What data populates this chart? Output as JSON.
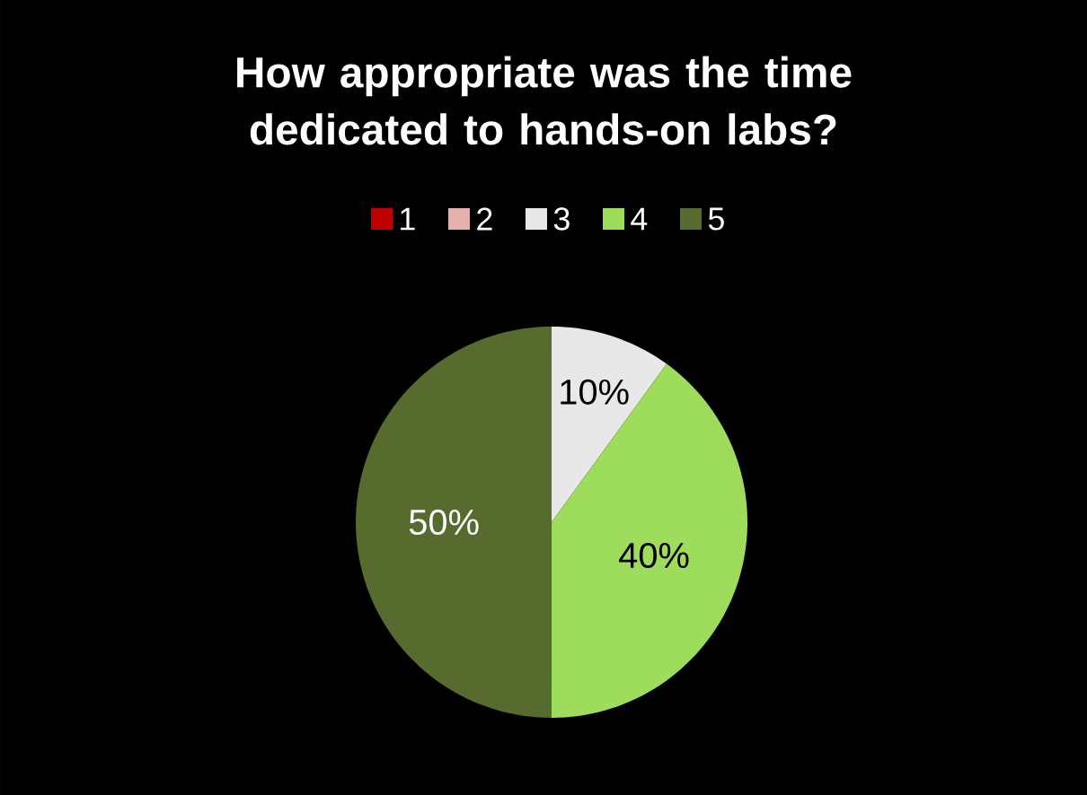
{
  "chart_data": {
    "type": "pie",
    "title": "How appropriate was the time dedicated to hands-on labs?",
    "categories": [
      "1",
      "2",
      "3",
      "4",
      "5"
    ],
    "values": [
      0,
      0,
      10,
      40,
      50
    ],
    "colors": [
      "#c00000",
      "#e6b0ae",
      "#e8e8e8",
      "#9edc5c",
      "#566b2d"
    ],
    "value_labels": [
      null,
      null,
      "10%",
      "40%",
      "50%"
    ],
    "legend": "top"
  }
}
